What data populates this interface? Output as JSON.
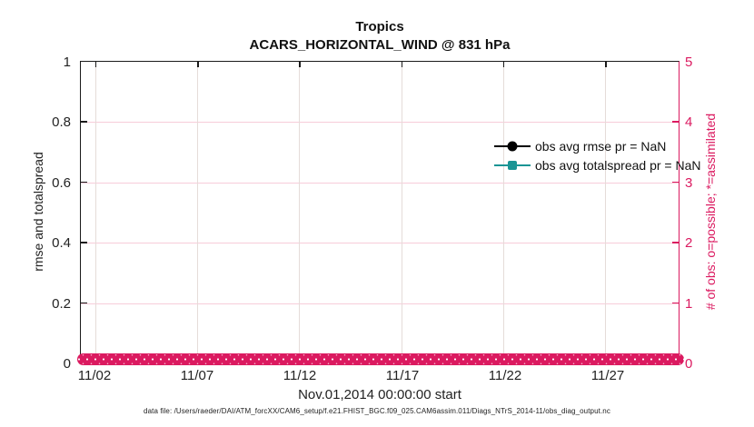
{
  "title": {
    "line1": "Tropics",
    "line2": "ACARS_HORIZONTAL_WIND @ 831 hPa"
  },
  "axes": {
    "left": {
      "label": "rmse and totalspread",
      "ticks": [
        "1",
        "0.8",
        "0.6",
        "0.4",
        "0.2",
        "0"
      ]
    },
    "right": {
      "label": "# of obs: o=possible; *=assimilated",
      "ticks": [
        "5",
        "4",
        "3",
        "2",
        "1",
        "0"
      ],
      "color": "#db1a60"
    },
    "x": {
      "label": "Nov.01,2014 00:00:00 start",
      "ticks": [
        "11/02",
        "11/07",
        "11/12",
        "11/17",
        "11/22",
        "11/27"
      ]
    }
  },
  "legend": {
    "items": [
      {
        "label": "obs avg rmse pr = NaN",
        "color": "#000000",
        "marker": "circle"
      },
      {
        "label": "obs avg totalspread pr = NaN",
        "color": "#1a9494",
        "marker": "square"
      }
    ]
  },
  "footer": "data file: /Users/raeder/DAI/ATM_forcXX/CAM6_setup/f.e21.FHIST_BGC.f09_025.CAM6assim.011/Diags_NTrS_2014-11/obs_diag_output.nc",
  "chart_data": {
    "type": "line",
    "title": "Tropics",
    "subtitle": "ACARS_HORIZONTAL_WIND @ 831 hPa",
    "xlabel": "Nov.01,2014 00:00:00 start",
    "ylabel_left": "rmse and totalspread",
    "ylabel_right": "# of obs: o=possible; *=assimilated",
    "ylim_left": [
      0,
      1
    ],
    "ylim_right": [
      0,
      5
    ],
    "x_range": [
      "2014-11-01",
      "2014-12-01"
    ],
    "x_ticks": [
      "11/02",
      "11/07",
      "11/12",
      "11/17",
      "11/22",
      "11/27"
    ],
    "grid": true,
    "legend_position": "upper right, no box",
    "series": [
      {
        "name": "obs avg rmse pr = NaN",
        "axis": "left",
        "color": "#000000",
        "marker": "filled-circle",
        "values": "NaN (no curve plotted)"
      },
      {
        "name": "obs avg totalspread pr = NaN",
        "axis": "left",
        "color": "#1a9494",
        "marker": "filled-square",
        "values": "NaN (no curve plotted)"
      },
      {
        "name": "# of obs possible",
        "axis": "right",
        "color": "#db1a60",
        "marker": "o",
        "note": "dense open-circle markers at every assimilation time across Nov 2014, all values = 0"
      }
    ]
  }
}
